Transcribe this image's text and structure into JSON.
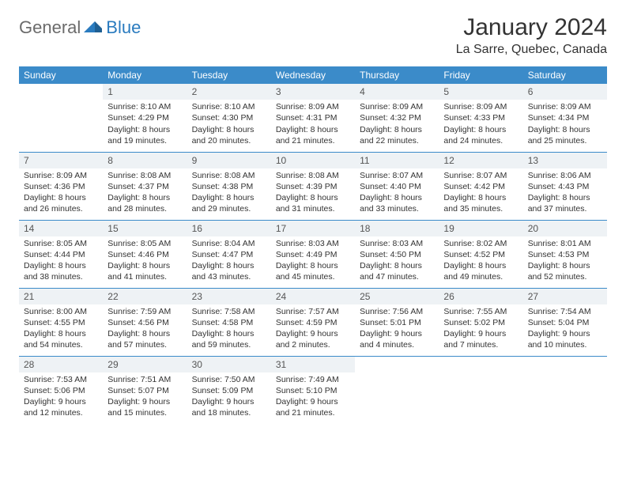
{
  "logo": {
    "part1": "General",
    "part2": "Blue"
  },
  "title": "January 2024",
  "location": "La Sarre, Quebec, Canada",
  "colors": {
    "header_bg": "#3b8bc9",
    "header_fg": "#ffffff",
    "rule": "#3b8bc9",
    "daynum_bg": "#eef2f5",
    "logo_gray": "#6b6b6b",
    "logo_blue": "#2a7bbf"
  },
  "day_headers": [
    "Sunday",
    "Monday",
    "Tuesday",
    "Wednesday",
    "Thursday",
    "Friday",
    "Saturday"
  ],
  "weeks": [
    [
      null,
      {
        "n": "1",
        "sr": "8:10 AM",
        "ss": "4:29 PM",
        "dl": "8 hours and 19 minutes."
      },
      {
        "n": "2",
        "sr": "8:10 AM",
        "ss": "4:30 PM",
        "dl": "8 hours and 20 minutes."
      },
      {
        "n": "3",
        "sr": "8:09 AM",
        "ss": "4:31 PM",
        "dl": "8 hours and 21 minutes."
      },
      {
        "n": "4",
        "sr": "8:09 AM",
        "ss": "4:32 PM",
        "dl": "8 hours and 22 minutes."
      },
      {
        "n": "5",
        "sr": "8:09 AM",
        "ss": "4:33 PM",
        "dl": "8 hours and 24 minutes."
      },
      {
        "n": "6",
        "sr": "8:09 AM",
        "ss": "4:34 PM",
        "dl": "8 hours and 25 minutes."
      }
    ],
    [
      {
        "n": "7",
        "sr": "8:09 AM",
        "ss": "4:36 PM",
        "dl": "8 hours and 26 minutes."
      },
      {
        "n": "8",
        "sr": "8:08 AM",
        "ss": "4:37 PM",
        "dl": "8 hours and 28 minutes."
      },
      {
        "n": "9",
        "sr": "8:08 AM",
        "ss": "4:38 PM",
        "dl": "8 hours and 29 minutes."
      },
      {
        "n": "10",
        "sr": "8:08 AM",
        "ss": "4:39 PM",
        "dl": "8 hours and 31 minutes."
      },
      {
        "n": "11",
        "sr": "8:07 AM",
        "ss": "4:40 PM",
        "dl": "8 hours and 33 minutes."
      },
      {
        "n": "12",
        "sr": "8:07 AM",
        "ss": "4:42 PM",
        "dl": "8 hours and 35 minutes."
      },
      {
        "n": "13",
        "sr": "8:06 AM",
        "ss": "4:43 PM",
        "dl": "8 hours and 37 minutes."
      }
    ],
    [
      {
        "n": "14",
        "sr": "8:05 AM",
        "ss": "4:44 PM",
        "dl": "8 hours and 38 minutes."
      },
      {
        "n": "15",
        "sr": "8:05 AM",
        "ss": "4:46 PM",
        "dl": "8 hours and 41 minutes."
      },
      {
        "n": "16",
        "sr": "8:04 AM",
        "ss": "4:47 PM",
        "dl": "8 hours and 43 minutes."
      },
      {
        "n": "17",
        "sr": "8:03 AM",
        "ss": "4:49 PM",
        "dl": "8 hours and 45 minutes."
      },
      {
        "n": "18",
        "sr": "8:03 AM",
        "ss": "4:50 PM",
        "dl": "8 hours and 47 minutes."
      },
      {
        "n": "19",
        "sr": "8:02 AM",
        "ss": "4:52 PM",
        "dl": "8 hours and 49 minutes."
      },
      {
        "n": "20",
        "sr": "8:01 AM",
        "ss": "4:53 PM",
        "dl": "8 hours and 52 minutes."
      }
    ],
    [
      {
        "n": "21",
        "sr": "8:00 AM",
        "ss": "4:55 PM",
        "dl": "8 hours and 54 minutes."
      },
      {
        "n": "22",
        "sr": "7:59 AM",
        "ss": "4:56 PM",
        "dl": "8 hours and 57 minutes."
      },
      {
        "n": "23",
        "sr": "7:58 AM",
        "ss": "4:58 PM",
        "dl": "8 hours and 59 minutes."
      },
      {
        "n": "24",
        "sr": "7:57 AM",
        "ss": "4:59 PM",
        "dl": "9 hours and 2 minutes."
      },
      {
        "n": "25",
        "sr": "7:56 AM",
        "ss": "5:01 PM",
        "dl": "9 hours and 4 minutes."
      },
      {
        "n": "26",
        "sr": "7:55 AM",
        "ss": "5:02 PM",
        "dl": "9 hours and 7 minutes."
      },
      {
        "n": "27",
        "sr": "7:54 AM",
        "ss": "5:04 PM",
        "dl": "9 hours and 10 minutes."
      }
    ],
    [
      {
        "n": "28",
        "sr": "7:53 AM",
        "ss": "5:06 PM",
        "dl": "9 hours and 12 minutes."
      },
      {
        "n": "29",
        "sr": "7:51 AM",
        "ss": "5:07 PM",
        "dl": "9 hours and 15 minutes."
      },
      {
        "n": "30",
        "sr": "7:50 AM",
        "ss": "5:09 PM",
        "dl": "9 hours and 18 minutes."
      },
      {
        "n": "31",
        "sr": "7:49 AM",
        "ss": "5:10 PM",
        "dl": "9 hours and 21 minutes."
      },
      null,
      null,
      null
    ]
  ],
  "labels": {
    "sunrise": "Sunrise: ",
    "sunset": "Sunset: ",
    "daylight": "Daylight: "
  }
}
